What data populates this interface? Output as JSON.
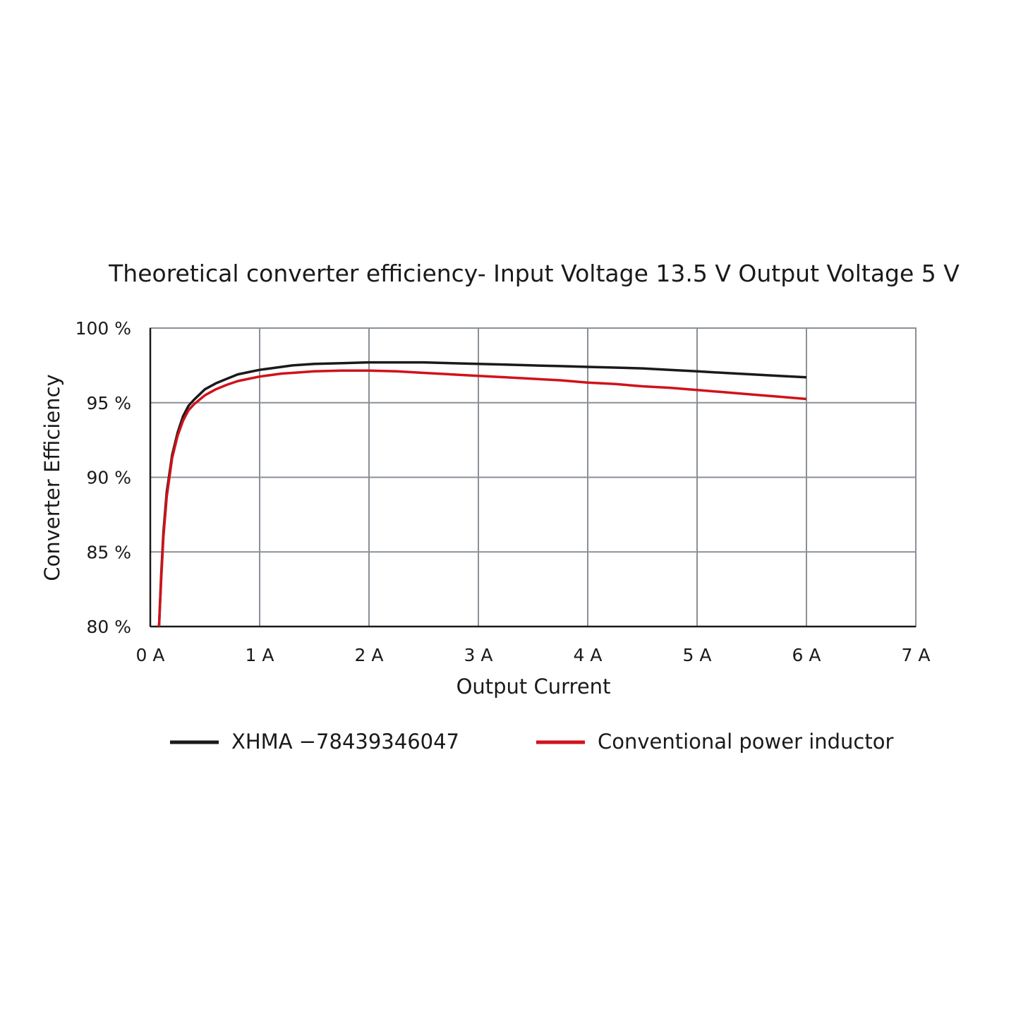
{
  "chart_data": {
    "type": "line",
    "title": "Theoretical converter efficiency- Input Voltage 13.5 V Output Voltage 5 V",
    "xlabel": "Output Current",
    "ylabel": "Converter Efficiency",
    "xlim": [
      0,
      7
    ],
    "ylim": [
      80,
      100
    ],
    "x_ticks": [
      0,
      1,
      2,
      3,
      4,
      5,
      6,
      7
    ],
    "x_tick_labels": [
      "0 A",
      "1 A",
      "2 A",
      "3 A",
      "4 A",
      "5 A",
      "6 A",
      "7 A"
    ],
    "y_ticks": [
      80,
      85,
      90,
      95,
      100
    ],
    "y_tick_labels": [
      "80 %",
      "85 %",
      "90 %",
      "95 %",
      "100 %"
    ],
    "grid": true,
    "legend_position": "bottom",
    "series": [
      {
        "name": "XHMA −78439346047",
        "color": "#1a1a1a",
        "x": [
          0.08,
          0.1,
          0.12,
          0.15,
          0.2,
          0.25,
          0.3,
          0.35,
          0.4,
          0.5,
          0.6,
          0.7,
          0.8,
          0.9,
          1.0,
          1.1,
          1.2,
          1.3,
          1.5,
          1.75,
          2.0,
          2.25,
          2.5,
          2.75,
          3.0,
          3.25,
          3.5,
          3.75,
          4.0,
          4.25,
          4.5,
          4.75,
          5.0,
          5.25,
          5.5,
          5.75,
          6.0
        ],
        "y": [
          80.0,
          83.5,
          86.3,
          89.0,
          91.5,
          93.0,
          94.1,
          94.8,
          95.2,
          95.9,
          96.3,
          96.6,
          96.9,
          97.05,
          97.2,
          97.3,
          97.4,
          97.5,
          97.6,
          97.65,
          97.7,
          97.7,
          97.7,
          97.65,
          97.6,
          97.55,
          97.5,
          97.45,
          97.4,
          97.35,
          97.3,
          97.2,
          97.1,
          97.0,
          96.9,
          96.8,
          96.7
        ]
      },
      {
        "name": "Conventional power inductor",
        "color": "#d0121b",
        "x": [
          0.08,
          0.1,
          0.12,
          0.15,
          0.2,
          0.25,
          0.3,
          0.35,
          0.4,
          0.5,
          0.6,
          0.7,
          0.8,
          0.9,
          1.0,
          1.1,
          1.2,
          1.3,
          1.5,
          1.75,
          2.0,
          2.25,
          2.5,
          2.75,
          3.0,
          3.25,
          3.5,
          3.75,
          4.0,
          4.25,
          4.5,
          4.75,
          5.0,
          5.25,
          5.5,
          5.75,
          6.0
        ],
        "y": [
          80.0,
          83.2,
          86.0,
          88.7,
          91.3,
          92.8,
          93.8,
          94.5,
          94.9,
          95.5,
          95.9,
          96.2,
          96.45,
          96.6,
          96.75,
          96.85,
          96.95,
          97.0,
          97.1,
          97.15,
          97.15,
          97.1,
          97.0,
          96.9,
          96.8,
          96.7,
          96.6,
          96.5,
          96.35,
          96.25,
          96.1,
          96.0,
          95.85,
          95.7,
          95.55,
          95.4,
          95.25
        ]
      }
    ]
  }
}
